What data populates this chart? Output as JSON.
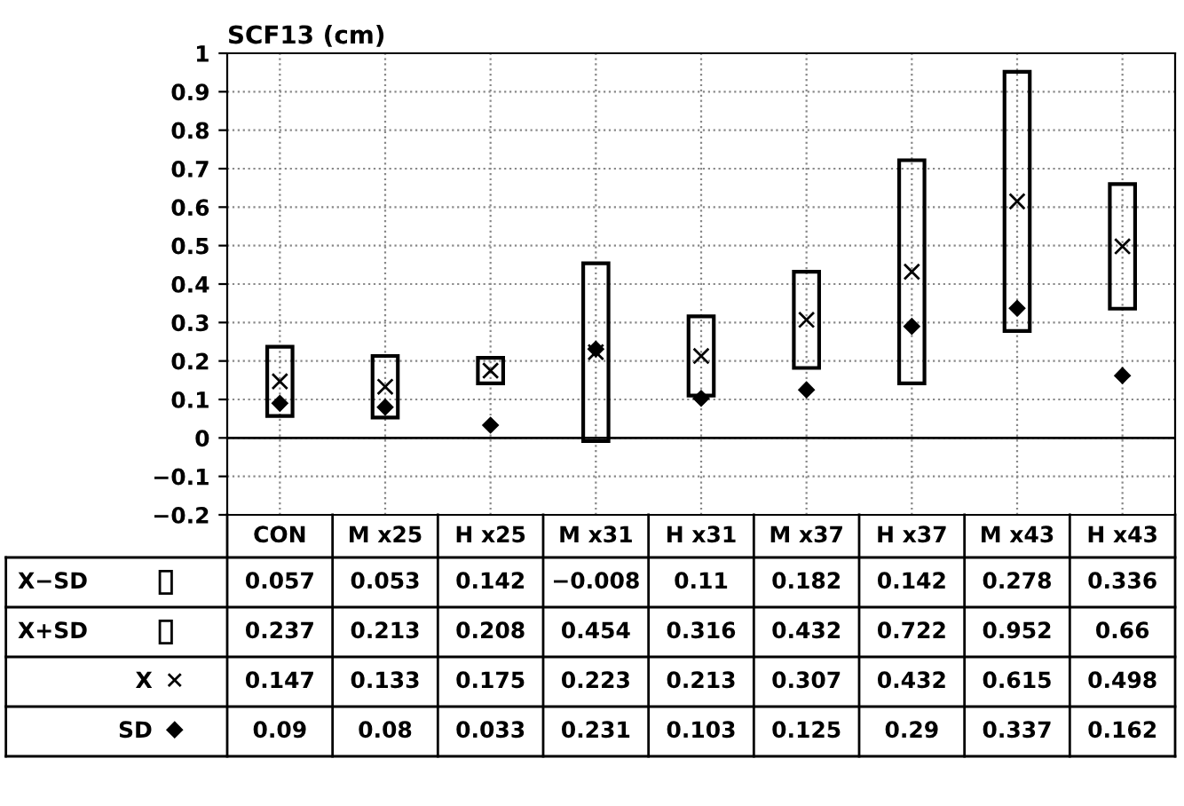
{
  "chart_data": {
    "type": "candlestick",
    "ylabel": "SCF13 (cm)",
    "categories": [
      "CON",
      "M x25",
      "H x25",
      "M x31",
      "H x31",
      "M x37",
      "H x37",
      "M x43",
      "H x43"
    ],
    "annotations": [
      "X−SD",
      "X+SD",
      "0.057",
      "0.053",
      "0.142",
      "−0.008",
      "0.11",
      "0.182",
      "0.142",
      "0.278",
      "0.336",
      "0.237",
      "0.213",
      "0.208",
      "0.454",
      "0.316",
      "0.432",
      "0.722",
      "0.952",
      "0.66"
    ],
    "ohlc": [
      [
        0.057,
        0.237,
        0.057,
        0.237
      ],
      [
        0.053,
        0.213,
        0.053,
        0.213
      ],
      [
        0.142,
        0.208,
        0.142,
        0.208
      ],
      [
        -0.008,
        0.454,
        -0.008,
        0.454
      ],
      [
        0.11,
        0.316,
        0.11,
        0.316
      ],
      [
        0.182,
        0.432,
        0.182,
        0.432
      ],
      [
        0.142,
        0.722,
        0.142,
        0.722
      ],
      [
        0.278,
        0.952,
        0.278,
        0.952
      ],
      [
        0.336,
        0.66,
        0.336,
        0.66
      ]
    ],
    "color": "#000000",
    "series": [
      {
        "name": "X",
        "type": "scatter",
        "marker": "cross",
        "color": "#000000",
        "values": [
          0.147,
          0.133,
          0.175,
          0.223,
          0.213,
          0.307,
          0.432,
          0.615,
          0.498
        ]
      },
      {
        "name": "SD",
        "type": "scatter",
        "marker": "diamond",
        "color": "#000000",
        "values": [
          0.09,
          0.08,
          0.033,
          0.231,
          0.103,
          0.125,
          0.29,
          0.337,
          0.162
        ]
      }
    ],
    "ylim": [
      -0.2,
      1
    ],
    "yticks": [
      1,
      {
        "value": 0.9,
        "label": "0.9"
      },
      {
        "value": 0.8,
        "label": "0.8"
      },
      {
        "value": 0.7,
        "label": "0.7"
      },
      {
        "value": 0.6,
        "label": "0.6"
      },
      {
        "value": 0.5,
        "label": "0.5"
      },
      {
        "value": 0.4,
        "label": "0.4"
      },
      {
        "value": 0.3,
        "label": "0.3"
      },
      {
        "value": 0.2,
        "label": "0.2"
      },
      {
        "value": 0.1,
        "label": "0.1"
      },
      0,
      {
        "value": -0.1,
        "label": "−0.1"
      },
      {
        "value": -0.2,
        "label": "−0.2"
      }
    ],
    "ref_lines": [
      {
        "axis": "y",
        "value": 0,
        "color": "#000000"
      }
    ],
    "grid": true,
    "data_labels": true,
    "legend": "bottom left"
  }
}
